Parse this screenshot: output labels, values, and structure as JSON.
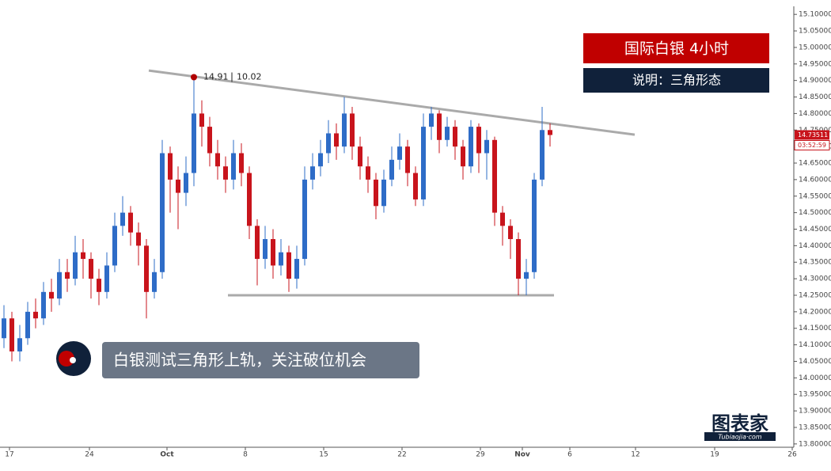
{
  "chart_data": {
    "type": "candlestick",
    "title": "国际白银  4小时",
    "subtitle": "说明：三角形态",
    "annotation": "白银测试三角形上轨，关注破位机会",
    "logo": {
      "text": "图表家",
      "url": "Tubiaojia·com"
    },
    "up_color": "#2e6cc7",
    "down_color": "#c8141c",
    "open": [
      14.12,
      14.18,
      14.08,
      14.12,
      14.2,
      14.18,
      14.26,
      14.24,
      14.32,
      14.3,
      14.38,
      14.36,
      14.3,
      14.26,
      14.34,
      14.46,
      14.5,
      14.44,
      14.4,
      14.26,
      14.32,
      14.68,
      14.6,
      14.56,
      14.62,
      14.8,
      14.76,
      14.68,
      14.64,
      14.6,
      14.68,
      14.62,
      14.46,
      14.36,
      14.42,
      14.34,
      14.38,
      14.3,
      14.36,
      14.6,
      14.64,
      14.68,
      14.74,
      14.7,
      14.8,
      14.7,
      14.64,
      14.6,
      14.52,
      14.6,
      14.66,
      14.7,
      14.62,
      14.54,
      14.76,
      14.8,
      14.72,
      14.76,
      14.7,
      14.64,
      14.76,
      14.68,
      14.72,
      14.5,
      14.46,
      14.42,
      14.3,
      14.32,
      14.6,
      14.75
    ],
    "high": [
      14.22,
      14.2,
      14.16,
      14.23,
      14.24,
      14.29,
      14.3,
      14.36,
      14.36,
      14.43,
      14.42,
      14.38,
      14.33,
      14.38,
      14.5,
      14.55,
      14.52,
      14.47,
      14.42,
      14.36,
      14.72,
      14.7,
      14.64,
      14.67,
      14.91,
      14.84,
      14.79,
      14.72,
      14.67,
      14.72,
      14.71,
      14.64,
      14.48,
      14.46,
      14.45,
      14.42,
      14.4,
      14.4,
      14.64,
      14.68,
      14.72,
      14.78,
      14.77,
      14.85,
      14.82,
      14.73,
      14.67,
      14.62,
      14.63,
      14.7,
      14.74,
      14.72,
      14.64,
      14.8,
      14.82,
      14.81,
      14.79,
      14.78,
      14.72,
      14.78,
      14.77,
      14.75,
      14.73,
      14.52,
      14.48,
      14.44,
      14.36,
      14.62,
      14.82,
      14.77
    ],
    "low": [
      14.09,
      14.05,
      14.05,
      14.1,
      14.15,
      14.16,
      14.2,
      14.22,
      14.26,
      14.28,
      14.3,
      14.24,
      14.22,
      14.24,
      14.32,
      14.43,
      14.4,
      14.34,
      14.18,
      14.24,
      14.3,
      14.5,
      14.45,
      14.52,
      14.58,
      14.7,
      14.64,
      14.6,
      14.56,
      14.57,
      14.58,
      14.42,
      14.28,
      14.33,
      14.3,
      14.31,
      14.26,
      14.27,
      14.34,
      14.57,
      14.61,
      14.65,
      14.66,
      14.68,
      14.66,
      14.6,
      14.56,
      14.48,
      14.5,
      14.58,
      14.63,
      14.58,
      14.52,
      14.52,
      14.72,
      14.68,
      14.7,
      14.66,
      14.6,
      14.62,
      14.62,
      14.6,
      14.46,
      14.4,
      14.36,
      14.25,
      14.25,
      14.3,
      14.58,
      14.7
    ],
    "close": [
      14.18,
      14.08,
      14.12,
      14.2,
      14.18,
      14.26,
      14.24,
      14.32,
      14.3,
      14.38,
      14.36,
      14.3,
      14.26,
      14.34,
      14.46,
      14.5,
      14.44,
      14.4,
      14.26,
      14.32,
      14.68,
      14.6,
      14.56,
      14.62,
      14.8,
      14.76,
      14.68,
      14.64,
      14.6,
      14.68,
      14.62,
      14.46,
      14.36,
      14.42,
      14.34,
      14.38,
      14.3,
      14.36,
      14.6,
      14.64,
      14.68,
      14.74,
      14.7,
      14.8,
      14.7,
      14.64,
      14.6,
      14.52,
      14.6,
      14.66,
      14.7,
      14.62,
      14.54,
      14.76,
      14.8,
      14.72,
      14.76,
      14.7,
      14.64,
      14.76,
      14.68,
      14.72,
      14.5,
      14.46,
      14.42,
      14.3,
      14.32,
      14.6,
      14.75,
      14.735
    ],
    "marker": {
      "index": 24,
      "value": 14.91,
      "change": 10.02
    },
    "last_price": {
      "value": 14.73511,
      "label": "14.73511",
      "countdown": "03:52:59"
    },
    "trendlines": [
      {
        "x": [
          18.8,
          80.2
        ],
        "y": [
          14.93,
          14.736
        ],
        "color": "#aaaaaa"
      },
      {
        "x": [
          28.8,
          70
        ],
        "y": [
          14.25,
          14.25
        ],
        "color": "#aaaaaa"
      }
    ],
    "xlim": [
      0,
      100.3
    ],
    "ylim": [
      13.79,
      15.11
    ],
    "xticks": [
      {
        "value": 1.2,
        "label": "17"
      },
      {
        "value": 11.3,
        "label": "24"
      },
      {
        "value": 21.1,
        "label": "Oct"
      },
      {
        "value": 31,
        "label": "8"
      },
      {
        "value": 40.9,
        "label": "15"
      },
      {
        "value": 50.8,
        "label": "22"
      },
      {
        "value": 60.7,
        "label": "29"
      },
      {
        "value": 66,
        "label": "Nov"
      },
      {
        "value": 72,
        "label": "6"
      },
      {
        "value": 80.3,
        "label": "12"
      },
      {
        "value": 90.3,
        "label": "19"
      },
      {
        "value": 100.1,
        "label": "26"
      }
    ],
    "yticks": [
      {
        "value": 13.8,
        "label": "13.80000"
      },
      {
        "value": 13.85,
        "label": "13.85000"
      },
      {
        "value": 13.9,
        "label": "13.90000"
      },
      {
        "value": 13.95,
        "label": "13.95000"
      },
      {
        "value": 14.0,
        "label": "14.00000"
      },
      {
        "value": 14.05,
        "label": "14.05000"
      },
      {
        "value": 14.1,
        "label": "14.10000"
      },
      {
        "value": 14.15,
        "label": "14.15000"
      },
      {
        "value": 14.2,
        "label": "14.20000"
      },
      {
        "value": 14.25,
        "label": "14.25000"
      },
      {
        "value": 14.3,
        "label": "14.30000"
      },
      {
        "value": 14.35,
        "label": "14.35000"
      },
      {
        "value": 14.4,
        "label": "14.40000"
      },
      {
        "value": 14.45,
        "label": "14.45000"
      },
      {
        "value": 14.5,
        "label": "14.50000"
      },
      {
        "value": 14.55,
        "label": "14.55000"
      },
      {
        "value": 14.6,
        "label": "14.60000"
      },
      {
        "value": 14.65,
        "label": "14.65000"
      },
      {
        "value": 14.7,
        "label": "14.70000"
      },
      {
        "value": 14.75,
        "label": "14.75000"
      },
      {
        "value": 14.8,
        "label": "14.80000"
      },
      {
        "value": 14.85,
        "label": "14.85000"
      },
      {
        "value": 14.9,
        "label": "14.90000"
      },
      {
        "value": 14.95,
        "label": "14.95000"
      },
      {
        "value": 15.0,
        "label": "15.00000"
      },
      {
        "value": 15.05,
        "label": "15.05000"
      },
      {
        "value": 15.1,
        "label": "15.10000"
      }
    ]
  }
}
